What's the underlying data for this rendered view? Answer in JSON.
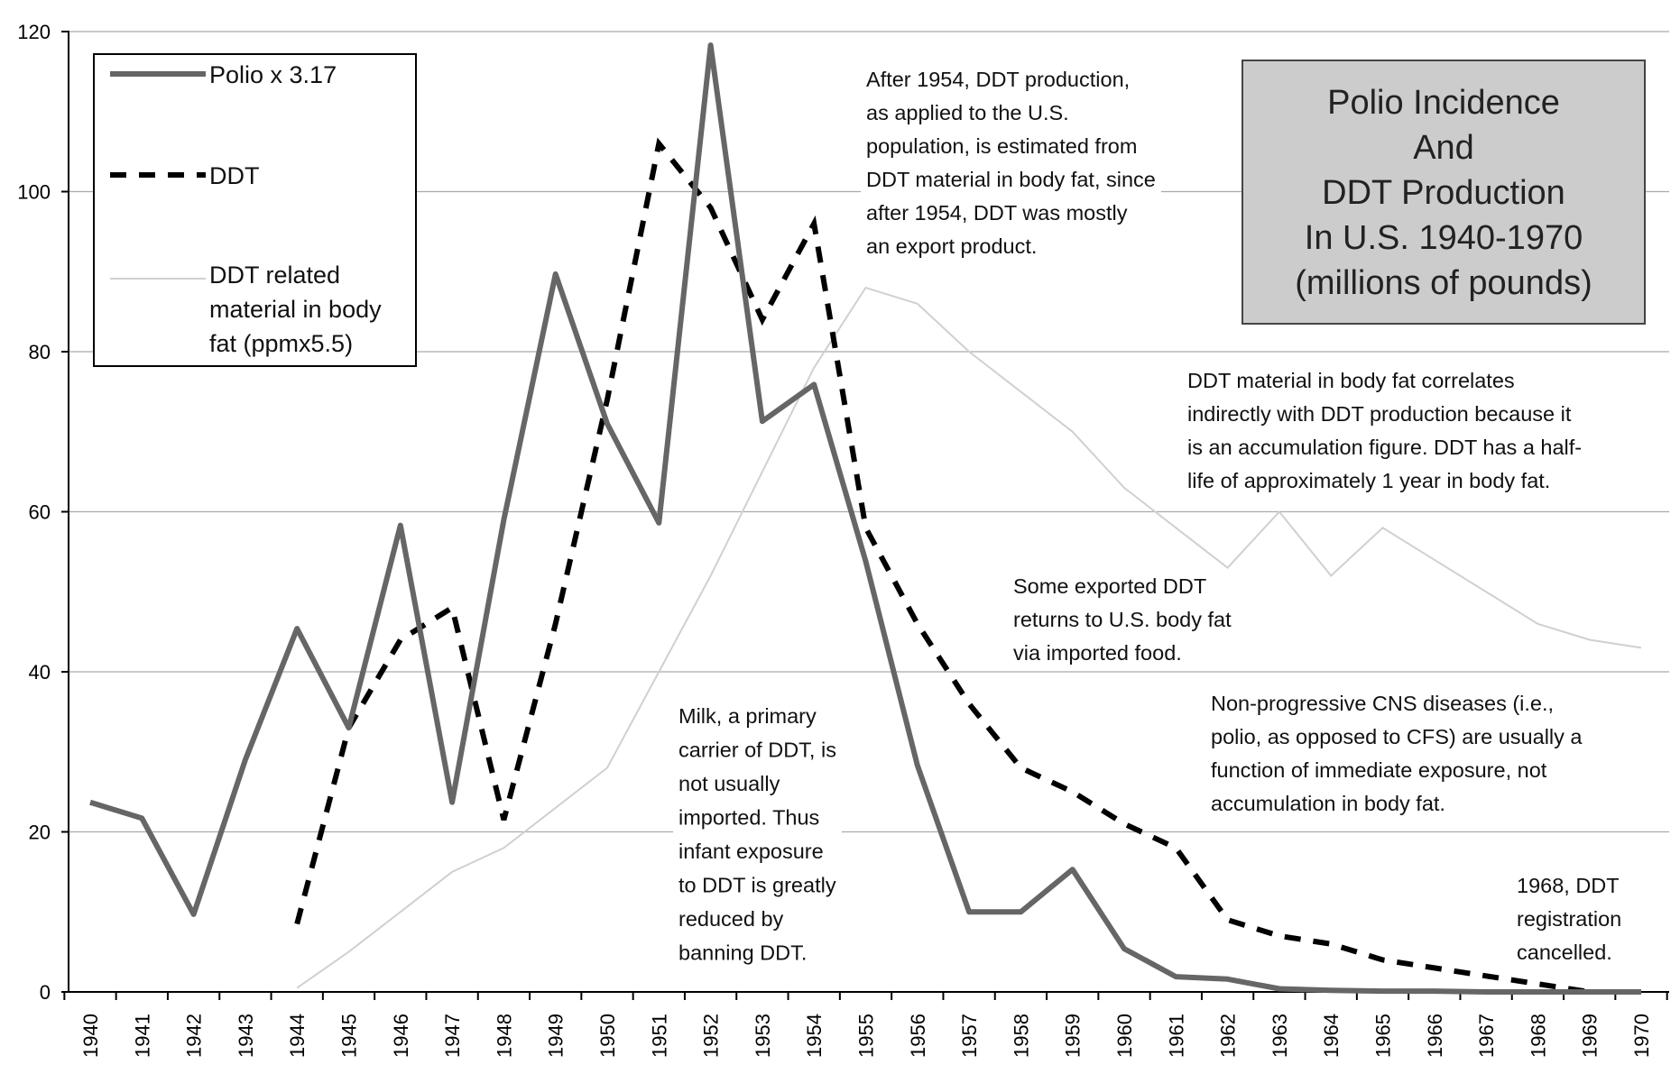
{
  "chart_data": {
    "type": "line",
    "title_lines": [
      "Polio Incidence",
      "And",
      "DDT Production",
      "In U.S. 1940-1970",
      "(millions of pounds)"
    ],
    "x": [
      "1940",
      "1941",
      "1942",
      "1943",
      "1944",
      "1945",
      "1946",
      "1947",
      "1948",
      "1949",
      "1950",
      "1951",
      "1952",
      "1953",
      "1954",
      "1955",
      "1956",
      "1957",
      "1958",
      "1959",
      "1960",
      "1961",
      "1962",
      "1963",
      "1964",
      "1965",
      "1966",
      "1967",
      "1968",
      "1969",
      "1970"
    ],
    "y_ticks": [
      "0",
      "20",
      "40",
      "60",
      "80",
      "100",
      "120"
    ],
    "ylim": [
      0,
      120
    ],
    "gridlines": true,
    "series": [
      {
        "name": "Polio x 3.17",
        "style": "solid-thick",
        "color": "#666666",
        "values": [
          23.7,
          21.7,
          9.7,
          29,
          45.4,
          33,
          58.3,
          23.7,
          59,
          89.7,
          71,
          58.6,
          118.3,
          71.3,
          75.9,
          53.8,
          28.3,
          10,
          10,
          15.3,
          5.4,
          1.9,
          1.6,
          0.4,
          0.2,
          0.1,
          0.1,
          0,
          0,
          0,
          0
        ]
      },
      {
        "name": "DDT",
        "style": "dashed",
        "color": "#000000",
        "values": [
          null,
          null,
          null,
          null,
          8.5,
          33,
          44,
          48,
          21.5,
          46,
          74,
          106,
          98,
          84,
          96,
          58,
          46,
          36,
          28,
          25,
          21,
          18,
          9,
          7,
          6,
          4,
          3,
          2,
          1,
          0,
          0
        ]
      },
      {
        "name": "DDT related material in body fat (ppmx5.5)",
        "style": "thin",
        "color": "#d0d0d0",
        "values": [
          null,
          null,
          null,
          null,
          0.5,
          5,
          10,
          15,
          18,
          23,
          28,
          40,
          52,
          65,
          78,
          88,
          86,
          80,
          75,
          70,
          63,
          58,
          53,
          60,
          52,
          58,
          54,
          50,
          46,
          44,
          43
        ]
      }
    ],
    "legend": {
      "position": "top-left",
      "entries": [
        "Polio x 3.17",
        "DDT",
        "DDT related material in body fat (ppmx5.5)"
      ],
      "entry_lines": [
        [
          "Polio x 3.17"
        ],
        [
          "DDT"
        ],
        [
          "DDT related",
          "material in body",
          "fat (ppmx5.5)"
        ]
      ]
    },
    "annotations": [
      {
        "id": "after-1954",
        "lines": [
          "After 1954, DDT production,",
          "as applied to the U.S.",
          "population, is estimated from",
          "DDT material in body fat, since",
          "after 1954, DDT was mostly",
          "an export product."
        ]
      },
      {
        "id": "accumulation",
        "lines": [
          "DDT material in body fat correlates",
          "indirectly with DDT production because it",
          "is an accumulation figure. DDT has a half-",
          "life of approximately 1 year in body fat."
        ]
      },
      {
        "id": "exported",
        "lines": [
          "Some exported DDT",
          "returns to U.S. body fat",
          "via imported food."
        ]
      },
      {
        "id": "cns",
        "lines": [
          "Non-progressive CNS diseases (i.e.,",
          "polio, as opposed to CFS) are usually a",
          "function of immediate exposure, not",
          "accumulation in body fat."
        ]
      },
      {
        "id": "milk",
        "lines": [
          "Milk, a primary",
          "carrier of DDT, is",
          "not usually",
          "imported. Thus",
          "infant exposure",
          "to DDT is greatly",
          "reduced by",
          "banning DDT."
        ]
      },
      {
        "id": "1968",
        "lines": [
          "1968, DDT",
          "registration",
          "cancelled."
        ]
      }
    ],
    "colors": {
      "polio": "#666666",
      "ddt": "#000000",
      "body_fat": "#d0d0d0",
      "grid": "#aaaaaa",
      "title_box": "#cccccc"
    }
  }
}
